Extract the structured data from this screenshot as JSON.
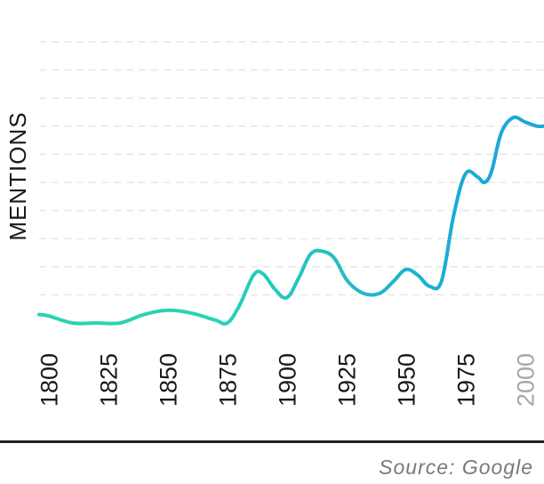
{
  "chart_data": {
    "type": "line",
    "ylabel": "MENTIONS",
    "xlim": [
      1796,
      2008
    ],
    "ylim": [
      0,
      10
    ],
    "grid": true,
    "x_ticks": [
      "1800",
      "1825",
      "1850",
      "1875",
      "1900",
      "1925",
      "1950",
      "1975",
      "2000"
    ],
    "series": [
      {
        "x": [
          1796,
          1800,
          1810,
          1820,
          1830,
          1840,
          1850,
          1860,
          1870,
          1875,
          1880,
          1886,
          1890,
          1895,
          1900,
          1905,
          1910,
          1915,
          1920,
          1925,
          1930,
          1935,
          1940,
          1945,
          1950,
          1955,
          1960,
          1965,
          1970,
          1975,
          1980,
          1983,
          1986,
          1990,
          1995,
          2000,
          2005,
          2008
        ],
        "y": [
          0.3,
          0.25,
          0.0,
          0.0,
          0.0,
          0.3,
          0.45,
          0.35,
          0.1,
          0.0,
          0.6,
          1.7,
          1.75,
          1.2,
          0.9,
          1.6,
          2.45,
          2.55,
          2.3,
          1.55,
          1.15,
          1.0,
          1.1,
          1.5,
          1.9,
          1.7,
          1.3,
          1.5,
          3.8,
          5.3,
          5.2,
          5.0,
          5.4,
          6.75,
          7.3,
          7.15,
          7.0,
          7.0
        ]
      }
    ],
    "gradient": [
      "#29d3b4",
      "#1aa9d8"
    ]
  },
  "source": "Source: Google"
}
